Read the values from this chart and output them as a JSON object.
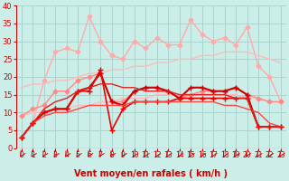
{
  "background_color": "#cceee8",
  "grid_color": "#aad4ce",
  "xlabel": "Vent moyen/en rafales ( km/h )",
  "xlim": [
    -0.5,
    23.5
  ],
  "ylim": [
    0,
    40
  ],
  "yticks": [
    0,
    5,
    10,
    15,
    20,
    25,
    30,
    35,
    40
  ],
  "xticks": [
    0,
    1,
    2,
    3,
    4,
    5,
    6,
    7,
    8,
    9,
    10,
    11,
    12,
    13,
    14,
    15,
    16,
    17,
    18,
    19,
    20,
    21,
    22,
    23
  ],
  "series": [
    {
      "x": [
        0,
        1,
        2,
        3,
        4,
        5,
        6,
        7,
        8,
        9,
        10,
        11,
        12,
        13,
        14,
        15,
        16,
        17,
        18,
        19,
        20,
        21,
        22,
        23
      ],
      "y": [
        3,
        7,
        19,
        27,
        28,
        27,
        37,
        30,
        26,
        25,
        30,
        28,
        31,
        29,
        29,
        36,
        32,
        30,
        31,
        29,
        34,
        23,
        20,
        13
      ],
      "color": "#ffaaaa",
      "linewidth": 1.0,
      "marker": "D",
      "markersize": 2.5,
      "linestyle": "-"
    },
    {
      "x": [
        0,
        1,
        2,
        3,
        4,
        5,
        6,
        7,
        8,
        9,
        10,
        11,
        12,
        13,
        14,
        15,
        16,
        17,
        18,
        19,
        20,
        21,
        22,
        23
      ],
      "y": [
        17,
        18,
        18,
        19,
        19,
        20,
        21,
        21,
        22,
        22,
        23,
        23,
        24,
        24,
        25,
        25,
        26,
        26,
        27,
        27,
        27,
        26,
        25,
        24
      ],
      "color": "#ffbbbb",
      "linewidth": 1.0,
      "marker": null,
      "markersize": 0,
      "linestyle": "-"
    },
    {
      "x": [
        0,
        1,
        2,
        3,
        4,
        5,
        6,
        7,
        8,
        9,
        10,
        11,
        12,
        13,
        14,
        15,
        16,
        17,
        18,
        19,
        20,
        21,
        22,
        23
      ],
      "y": [
        9,
        10,
        10,
        11,
        11,
        12,
        12,
        13,
        13,
        14,
        14,
        14,
        15,
        15,
        15,
        15,
        15,
        15,
        15,
        15,
        14,
        14,
        13,
        13
      ],
      "color": "#ffbbbb",
      "linewidth": 1.0,
      "marker": null,
      "markersize": 0,
      "linestyle": "-"
    },
    {
      "x": [
        0,
        1,
        2,
        3,
        4,
        5,
        6,
        7,
        8,
        9,
        10,
        11,
        12,
        13,
        14,
        15,
        16,
        17,
        18,
        19,
        20,
        21,
        22,
        23
      ],
      "y": [
        9,
        11,
        12,
        16,
        16,
        19,
        20,
        21,
        13,
        13,
        16,
        17,
        17,
        16,
        14,
        15,
        16,
        16,
        16,
        17,
        15,
        14,
        13,
        13
      ],
      "color": "#ff8888",
      "linewidth": 1.0,
      "marker": "D",
      "markersize": 2.5,
      "linestyle": "-"
    },
    {
      "x": [
        0,
        1,
        2,
        3,
        4,
        5,
        6,
        7,
        8,
        9,
        10,
        11,
        12,
        13,
        14,
        15,
        16,
        17,
        18,
        19,
        20,
        21,
        22,
        23
      ],
      "y": [
        3,
        7,
        10,
        11,
        11,
        16,
        17,
        21,
        13,
        12,
        16,
        17,
        17,
        16,
        14,
        17,
        17,
        16,
        16,
        17,
        15,
        6,
        6,
        6
      ],
      "color": "#cc0000",
      "linewidth": 1.5,
      "marker": "+",
      "markersize": 5,
      "linestyle": "-"
    },
    {
      "x": [
        0,
        1,
        2,
        3,
        4,
        5,
        6,
        7,
        8,
        9,
        10,
        11,
        12,
        13,
        14,
        15,
        16,
        17,
        18,
        19,
        20,
        21,
        22,
        23
      ],
      "y": [
        3,
        7,
        10,
        11,
        11,
        16,
        16,
        22,
        5,
        11,
        13,
        13,
        13,
        13,
        14,
        14,
        14,
        14,
        14,
        14,
        14,
        6,
        6,
        6
      ],
      "color": "#ee0000",
      "linewidth": 1.2,
      "marker": "+",
      "markersize": 4,
      "linestyle": "-"
    },
    {
      "x": [
        0,
        1,
        2,
        3,
        4,
        5,
        6,
        7,
        8,
        9,
        10,
        11,
        12,
        13,
        14,
        15,
        16,
        17,
        18,
        19,
        20,
        21,
        22,
        23
      ],
      "y": [
        3,
        7,
        9,
        10,
        10,
        11,
        12,
        12,
        12,
        12,
        13,
        13,
        13,
        13,
        13,
        13,
        13,
        13,
        12,
        12,
        11,
        10,
        7,
        6
      ],
      "color": "#ff4444",
      "linewidth": 1.0,
      "marker": null,
      "markersize": 0,
      "linestyle": "-"
    },
    {
      "x": [
        0,
        1,
        2,
        3,
        4,
        5,
        6,
        7,
        8,
        9,
        10,
        11,
        12,
        13,
        14,
        15,
        16,
        17,
        18,
        19,
        20,
        21,
        22,
        23
      ],
      "y": [
        3,
        7,
        11,
        13,
        14,
        16,
        17,
        18,
        18,
        17,
        17,
        16,
        16,
        16,
        15,
        15,
        15,
        15,
        15,
        14,
        14,
        6,
        6,
        6
      ],
      "color": "#dd2222",
      "linewidth": 1.0,
      "marker": null,
      "markersize": 0,
      "linestyle": "-"
    }
  ],
  "arrow_color": "#cc0000",
  "tick_color": "#cc0000",
  "xlabel_color": "#cc0000",
  "xlabel_fontsize": 7.0,
  "tick_fontsize_x": 5.5,
  "tick_fontsize_y": 6.0
}
